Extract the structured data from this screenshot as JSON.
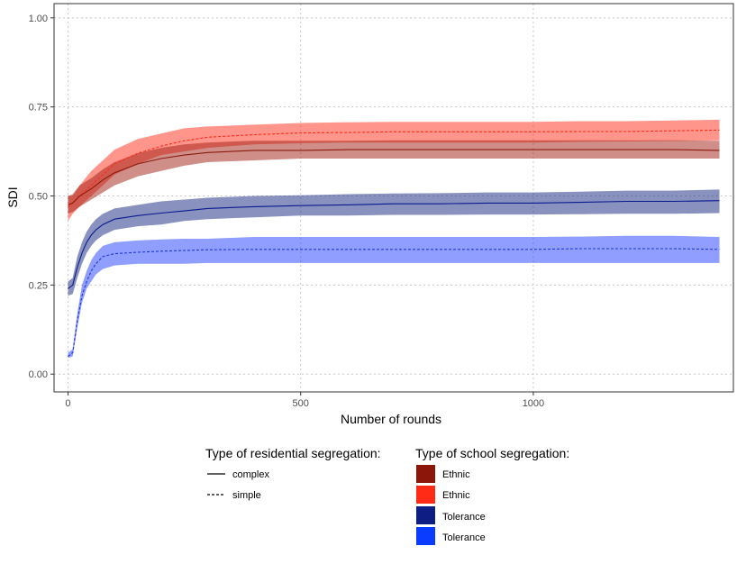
{
  "chart_data": {
    "type": "line",
    "xlabel": "Number of rounds",
    "ylabel": "SDI",
    "xlim": [
      -30,
      1430
    ],
    "ylim": [
      -0.05,
      1.04
    ],
    "x_ticks": [
      0,
      500,
      1000
    ],
    "x_tick_labels": [
      "0",
      "500",
      "1000"
    ],
    "y_ticks": [
      0,
      0.25,
      0.5,
      0.75,
      1
    ],
    "y_tick_labels": [
      "0.00",
      "0.25",
      "0.50",
      "0.75",
      "1.00"
    ],
    "grid": true,
    "legend_placement": "bottom",
    "series": [
      {
        "name": "Ethnic, simple",
        "residential": "simple",
        "school": "Ethnic",
        "color": "#ff2b17",
        "fill": "#ff2b17",
        "fill_opacity": 0.5,
        "x": [
          0,
          10,
          25,
          50,
          75,
          100,
          150,
          200,
          250,
          300,
          400,
          500,
          600,
          700,
          800,
          900,
          1000,
          1100,
          1200,
          1300,
          1400
        ],
        "y": [
          0.47,
          0.48,
          0.5,
          0.53,
          0.56,
          0.59,
          0.62,
          0.64,
          0.655,
          0.665,
          0.672,
          0.677,
          0.678,
          0.68,
          0.68,
          0.68,
          0.68,
          0.681,
          0.681,
          0.683,
          0.685
        ],
        "lower": [
          0.43,
          0.45,
          0.47,
          0.5,
          0.53,
          0.56,
          0.59,
          0.615,
          0.625,
          0.635,
          0.645,
          0.648,
          0.65,
          0.65,
          0.65,
          0.65,
          0.65,
          0.652,
          0.653,
          0.654,
          0.656
        ],
        "upper": [
          0.5,
          0.5,
          0.53,
          0.57,
          0.6,
          0.63,
          0.66,
          0.675,
          0.69,
          0.695,
          0.7,
          0.705,
          0.707,
          0.708,
          0.708,
          0.708,
          0.708,
          0.71,
          0.71,
          0.712,
          0.714
        ]
      },
      {
        "name": "Ethnic, complex",
        "residential": "complex",
        "school": "Ethnic",
        "color": "#8b1a0e",
        "fill": "#a01e12",
        "fill_opacity": 0.5,
        "x": [
          0,
          10,
          25,
          50,
          75,
          100,
          150,
          200,
          250,
          300,
          400,
          500,
          600,
          700,
          800,
          900,
          1000,
          1100,
          1200,
          1300,
          1400
        ],
        "y": [
          0.475,
          0.48,
          0.5,
          0.52,
          0.545,
          0.565,
          0.59,
          0.605,
          0.615,
          0.622,
          0.628,
          0.628,
          0.63,
          0.63,
          0.63,
          0.63,
          0.63,
          0.63,
          0.63,
          0.63,
          0.628
        ],
        "lower": [
          0.45,
          0.455,
          0.47,
          0.49,
          0.51,
          0.53,
          0.555,
          0.57,
          0.585,
          0.595,
          0.6,
          0.605,
          0.605,
          0.605,
          0.605,
          0.605,
          0.605,
          0.605,
          0.605,
          0.605,
          0.605
        ],
        "upper": [
          0.5,
          0.505,
          0.53,
          0.55,
          0.575,
          0.595,
          0.62,
          0.635,
          0.645,
          0.65,
          0.655,
          0.655,
          0.655,
          0.656,
          0.656,
          0.656,
          0.656,
          0.656,
          0.656,
          0.656,
          0.655
        ]
      },
      {
        "name": "Tolerance, simple",
        "residential": "simple",
        "school": "Tolerance",
        "color": "#2236d8",
        "fill": "#1f3dff",
        "fill_opacity": 0.5,
        "x": [
          0,
          10,
          20,
          30,
          40,
          50,
          60,
          75,
          100,
          150,
          200,
          250,
          300,
          400,
          500,
          600,
          700,
          800,
          900,
          1000,
          1100,
          1200,
          1300,
          1400
        ],
        "y": [
          0.05,
          0.06,
          0.15,
          0.22,
          0.26,
          0.29,
          0.31,
          0.33,
          0.338,
          0.342,
          0.345,
          0.347,
          0.349,
          0.35,
          0.35,
          0.35,
          0.35,
          0.35,
          0.35,
          0.35,
          0.352,
          0.352,
          0.352,
          0.35
        ],
        "lower": [
          0.045,
          0.05,
          0.13,
          0.2,
          0.24,
          0.26,
          0.28,
          0.295,
          0.305,
          0.31,
          0.31,
          0.31,
          0.312,
          0.312,
          0.312,
          0.312,
          0.312,
          0.312,
          0.312,
          0.312,
          0.312,
          0.312,
          0.312,
          0.312
        ],
        "upper": [
          0.06,
          0.07,
          0.17,
          0.25,
          0.29,
          0.32,
          0.34,
          0.36,
          0.37,
          0.375,
          0.378,
          0.38,
          0.38,
          0.385,
          0.385,
          0.385,
          0.385,
          0.385,
          0.385,
          0.385,
          0.386,
          0.388,
          0.388,
          0.385
        ]
      },
      {
        "name": "Tolerance, complex",
        "residential": "complex",
        "school": "Tolerance",
        "color": "#0a1a8f",
        "fill": "#14237f",
        "fill_opacity": 0.5,
        "x": [
          0,
          10,
          20,
          30,
          40,
          50,
          60,
          75,
          100,
          150,
          200,
          250,
          300,
          400,
          500,
          600,
          700,
          800,
          900,
          1000,
          1100,
          1200,
          1300,
          1400
        ],
        "y": [
          0.24,
          0.25,
          0.3,
          0.34,
          0.37,
          0.39,
          0.405,
          0.42,
          0.435,
          0.445,
          0.452,
          0.458,
          0.465,
          0.47,
          0.473,
          0.475,
          0.478,
          0.478,
          0.48,
          0.48,
          0.482,
          0.485,
          0.485,
          0.487
        ],
        "lower": [
          0.22,
          0.225,
          0.27,
          0.31,
          0.34,
          0.36,
          0.375,
          0.39,
          0.405,
          0.415,
          0.42,
          0.43,
          0.435,
          0.44,
          0.445,
          0.445,
          0.447,
          0.447,
          0.448,
          0.448,
          0.449,
          0.45,
          0.45,
          0.452
        ],
        "upper": [
          0.26,
          0.27,
          0.33,
          0.37,
          0.4,
          0.42,
          0.435,
          0.45,
          0.465,
          0.475,
          0.485,
          0.49,
          0.495,
          0.5,
          0.502,
          0.505,
          0.507,
          0.508,
          0.51,
          0.51,
          0.512,
          0.515,
          0.515,
          0.518
        ]
      }
    ],
    "legend": {
      "residential_title": "Type of residential segregation:",
      "residential_items": [
        {
          "label": "complex",
          "linetype": "solid"
        },
        {
          "label": "simple",
          "linetype": "dashed"
        }
      ],
      "school_title": "Type of school segregation:",
      "school_items": [
        {
          "label": "Ethnic",
          "color": "#8b1609"
        },
        {
          "label": "Ethnic",
          "color": "#ff2b17"
        },
        {
          "label": "Tolerance",
          "color": "#0d1d83"
        },
        {
          "label": "Tolerance",
          "color": "#0a3cff"
        }
      ]
    }
  }
}
